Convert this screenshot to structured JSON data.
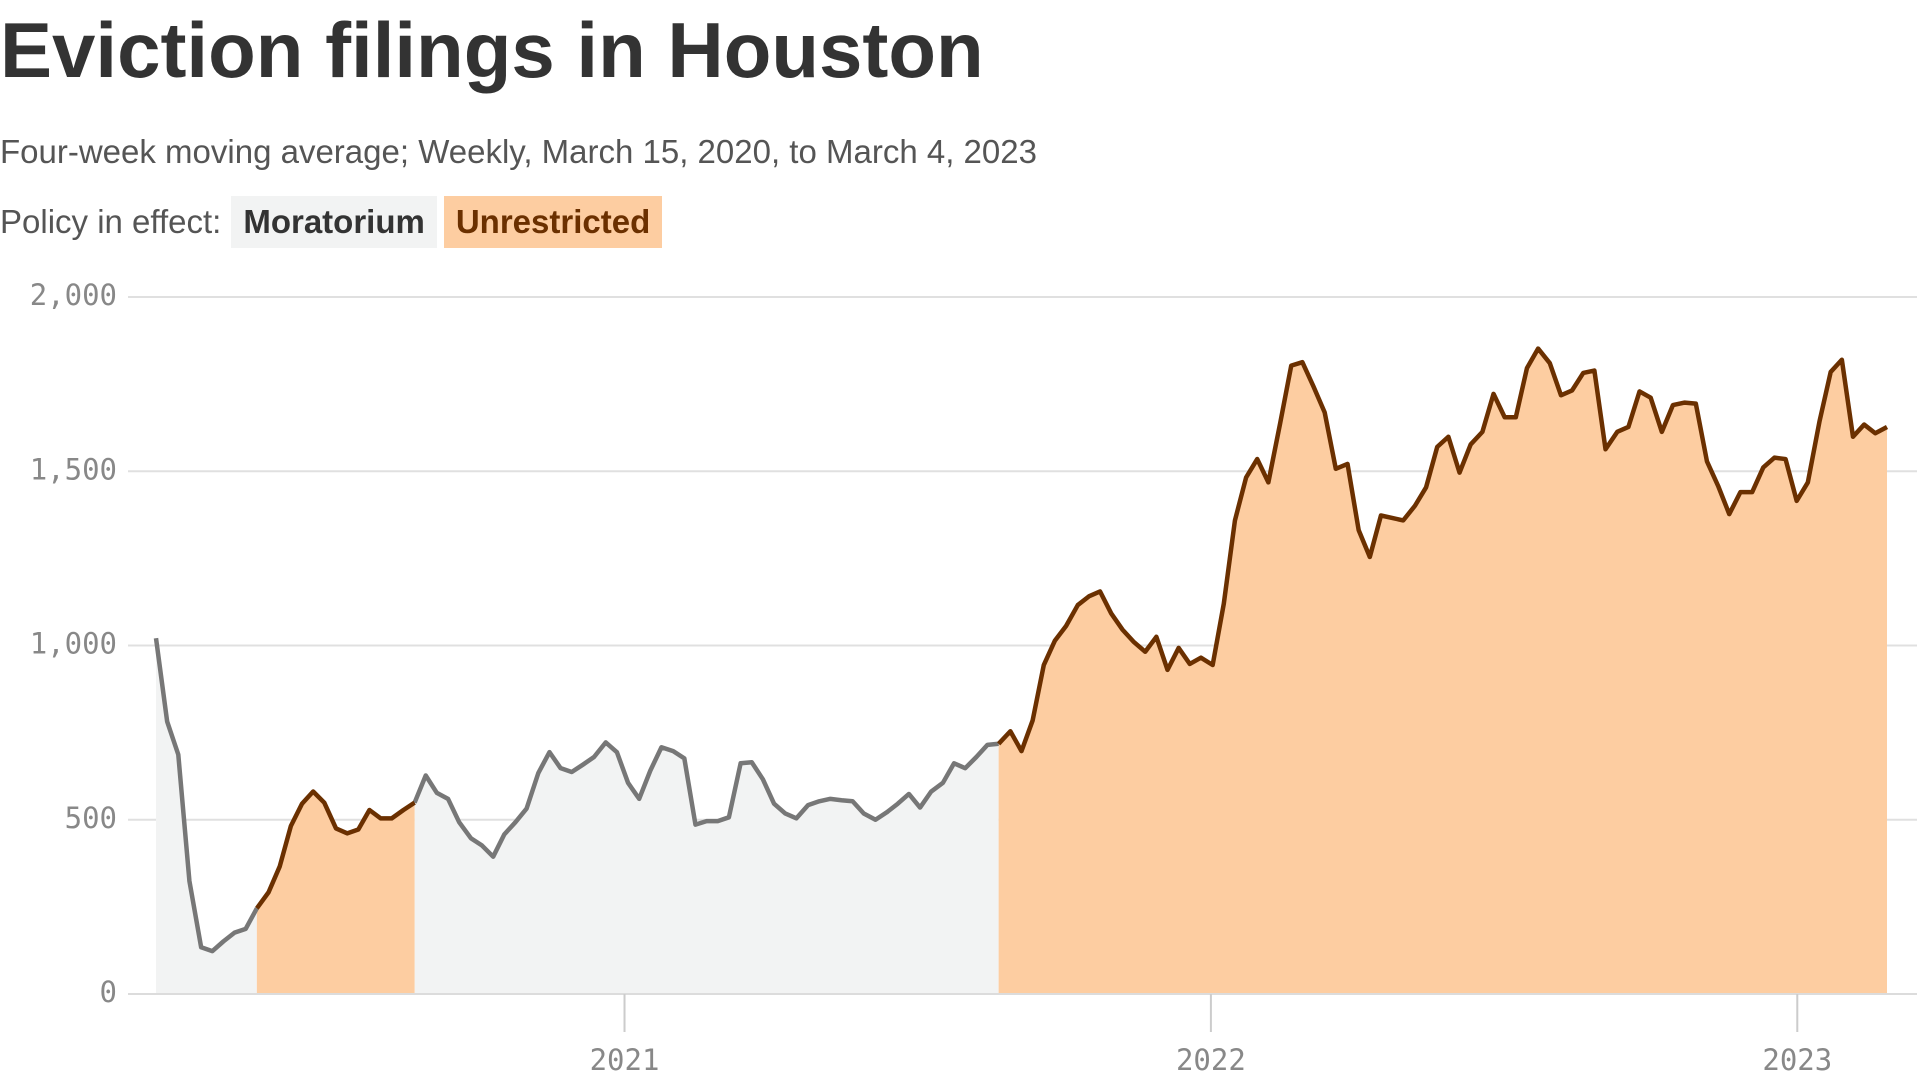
{
  "chart_data": {
    "type": "line",
    "title": "Eviction filings in Houston",
    "subtitle": "Four-week moving average; Weekly, March 15, 2020, to March 4, 2023",
    "legend_title": "Policy in effect:",
    "legend": [
      {
        "name": "Moratorium",
        "color": "#f2f3f3",
        "text_color": "#333333",
        "line_color": "#777777",
        "spans": [
          [
            2020.201,
            2020.373
          ],
          [
            2020.642,
            2021.638
          ]
        ]
      },
      {
        "name": "Unrestricted",
        "color": "#fdcda1",
        "text_color": "#6b3000",
        "line_color": "#6b3000",
        "spans": [
          [
            2020.373,
            2020.642
          ],
          [
            2021.638,
            2023.153
          ]
        ]
      }
    ],
    "x": [
      2020.201,
      2020.22,
      2020.239,
      2020.258,
      2020.278,
      2020.297,
      2020.316,
      2020.335,
      2020.354,
      2020.373,
      2020.393,
      2020.412,
      2020.431,
      2020.45,
      2020.469,
      2020.488,
      2020.508,
      2020.527,
      2020.546,
      2020.565,
      2020.584,
      2020.603,
      2020.623,
      2020.642,
      2020.661,
      2020.68,
      2020.699,
      2020.718,
      2020.738,
      2020.757,
      2020.776,
      2020.795,
      2020.814,
      2020.833,
      2020.853,
      2020.872,
      2020.891,
      2020.91,
      2020.929,
      2020.948,
      2020.968,
      2020.987,
      2021.006,
      2021.025,
      2021.044,
      2021.063,
      2021.083,
      2021.102,
      2021.121,
      2021.14,
      2021.159,
      2021.178,
      2021.198,
      2021.217,
      2021.236,
      2021.255,
      2021.274,
      2021.293,
      2021.313,
      2021.332,
      2021.351,
      2021.37,
      2021.389,
      2021.408,
      2021.428,
      2021.447,
      2021.466,
      2021.485,
      2021.504,
      2021.523,
      2021.543,
      2021.562,
      2021.581,
      2021.6,
      2021.619,
      2021.638,
      2021.658,
      2021.677,
      2021.696,
      2021.715,
      2021.734,
      2021.753,
      2021.773,
      2021.792,
      2021.811,
      2021.83,
      2021.849,
      2021.868,
      2021.888,
      2021.907,
      2021.926,
      2021.945,
      2021.964,
      2021.983,
      2022.003,
      2022.022,
      2022.041,
      2022.06,
      2022.079,
      2022.098,
      2022.118,
      2022.137,
      2022.156,
      2022.175,
      2022.194,
      2022.213,
      2022.233,
      2022.252,
      2022.271,
      2022.29,
      2022.309,
      2022.328,
      2022.348,
      2022.367,
      2022.386,
      2022.405,
      2022.424,
      2022.443,
      2022.463,
      2022.482,
      2022.501,
      2022.52,
      2022.539,
      2022.558,
      2022.578,
      2022.597,
      2022.616,
      2022.635,
      2022.654,
      2022.673,
      2022.693,
      2022.712,
      2022.731,
      2022.75,
      2022.769,
      2022.788,
      2022.808,
      2022.827,
      2022.846,
      2022.865,
      2022.884,
      2022.903,
      2022.923,
      2022.942,
      2022.961,
      2022.98,
      2022.999,
      2023.018,
      2023.038,
      2023.057,
      2023.076,
      2023.095,
      2023.114,
      2023.133,
      2023.153
    ],
    "values": [
      1021,
      782,
      687,
      324,
      134,
      123,
      151,
      176,
      187,
      246,
      292,
      366,
      482,
      546,
      581,
      549,
      475,
      461,
      472,
      528,
      504,
      504,
      528,
      549,
      627,
      577,
      560,
      493,
      447,
      426,
      394,
      458,
      493,
      532,
      634,
      694,
      648,
      637,
      658,
      680,
      722,
      694,
      606,
      560,
      641,
      708,
      697,
      676,
      486,
      496,
      496,
      507,
      662,
      665,
      616,
      546,
      518,
      504,
      542,
      553,
      560,
      556,
      553,
      518,
      500,
      521,
      546,
      574,
      535,
      581,
      606,
      662,
      648,
      680,
      715,
      718,
      754,
      697,
      785,
      944,
      1014,
      1056,
      1116,
      1141,
      1155,
      1092,
      1046,
      1011,
      982,
      1025,
      930,
      993,
      947,
      965,
      944,
      1120,
      1359,
      1482,
      1535,
      1468,
      1637,
      1803,
      1813,
      1743,
      1669,
      1507,
      1521,
      1331,
      1254,
      1373,
      1366,
      1359,
      1401,
      1454,
      1570,
      1599,
      1496,
      1577,
      1613,
      1722,
      1655,
      1655,
      1796,
      1852,
      1810,
      1718,
      1732,
      1782,
      1789,
      1563,
      1613,
      1627,
      1729,
      1711,
      1613,
      1690,
      1697,
      1694,
      1528,
      1458,
      1377,
      1440,
      1440,
      1511,
      1539,
      1535,
      1415,
      1468,
      1644,
      1785,
      1820,
      1599,
      1634,
      1609,
      1627
    ],
    "xlim": [
      2020.201,
      2023.153
    ],
    "xticks": [
      2021,
      2022,
      2023
    ],
    "ylim": [
      0,
      2000
    ],
    "yticks": [
      0,
      500,
      {
        "value": 1000,
        "label": "1,000"
      },
      {
        "value": 1500,
        "label": "1,500"
      },
      {
        "value": 2000,
        "label": "2,000"
      }
    ],
    "grid": true
  }
}
